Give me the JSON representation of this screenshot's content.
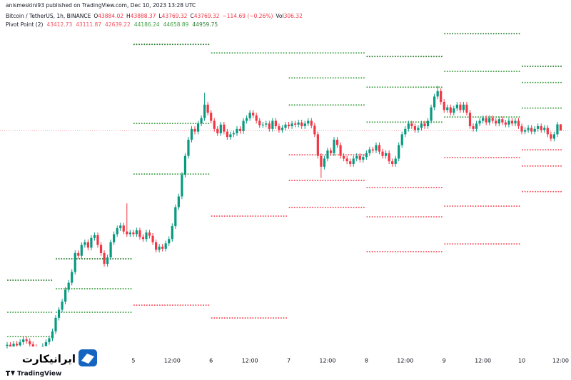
{
  "header": {
    "published": "anismeskini93 published on TradingView.com, Dec 10, 2023 13:28 UTC",
    "symbol": "Bitcoin / TetherUS, 1h, BINANCE",
    "ohlc_labels": [
      "O",
      "H",
      "L",
      "C"
    ],
    "change": "−114.69 (−0.26%)",
    "volume_label": "Vol",
    "volume": 306.32,
    "indicator": "Pivot Point (2)"
  },
  "chart_data": {
    "type": "candlestick",
    "categories": [
      null,
      null,
      null,
      null,
      null,
      null,
      null,
      null,
      null,
      null,
      null,
      null,
      null,
      null,
      null,
      null,
      null,
      null,
      null,
      null,
      null,
      null,
      null,
      null,
      null,
      null,
      null,
      null,
      null,
      null,
      null,
      null,
      null,
      null,
      null,
      null,
      null,
      null,
      null,
      "5",
      null,
      null,
      null,
      null,
      null,
      null,
      null,
      null,
      null,
      null,
      null,
      "12:00",
      null,
      null,
      null,
      null,
      null,
      null,
      null,
      null,
      null,
      null,
      null,
      "6",
      null,
      null,
      null,
      null,
      null,
      null,
      null,
      null,
      null,
      null,
      null,
      "12:00",
      null,
      null,
      null,
      null,
      null,
      null,
      null,
      null,
      null,
      null,
      null,
      "7",
      null,
      null,
      null,
      null,
      null,
      null,
      null,
      null,
      null,
      null,
      null,
      "12:00",
      null,
      null,
      null,
      null,
      null,
      null,
      null,
      null,
      null,
      null,
      null,
      "8",
      null,
      null,
      null,
      null,
      null,
      null,
      null,
      null,
      null,
      null,
      null,
      "12:00",
      null,
      null,
      null,
      null,
      null,
      null,
      null,
      null,
      null,
      null,
      null,
      "9",
      null,
      null,
      null,
      null,
      null,
      null,
      null,
      null,
      null,
      null,
      null,
      "12:00",
      null,
      null,
      null,
      null,
      null,
      null,
      null,
      null,
      null,
      null,
      null,
      "10",
      null,
      null,
      null,
      null,
      null,
      null,
      null,
      null,
      null,
      null,
      null,
      "12:00"
    ],
    "open": [
      39780,
      39800,
      39760,
      39820,
      39790,
      39850,
      39900,
      39870,
      39810,
      39760,
      39720,
      39700,
      39780,
      39850,
      39920,
      40050,
      40300,
      40450,
      40600,
      40820,
      40950,
      41150,
      41500,
      41450,
      41650,
      41700,
      41600,
      41780,
      41830,
      41650,
      41500,
      41300,
      41420,
      41700,
      41850,
      41960,
      42010,
      41900,
      41850,
      41880,
      41850,
      41920,
      41800,
      41760,
      41880,
      41820,
      41700,
      41560,
      41620,
      41580,
      41680,
      41760,
      42000,
      42350,
      42550,
      42950,
      43300,
      43600,
      43800,
      43750,
      43900,
      44000,
      44250,
      44100,
      43950,
      43800,
      43720,
      43880,
      43750,
      43650,
      43700,
      43720,
      43800,
      43760,
      43950,
      44000,
      44100,
      44050,
      43950,
      43870,
      43880,
      43900,
      43800,
      43950,
      43850,
      43780,
      43820,
      43880,
      43850,
      43900,
      43880,
      43920,
      43850,
      43900,
      43950,
      43860,
      43700,
      43300,
      43100,
      43250,
      43400,
      43350,
      43600,
      43500,
      43300,
      43250,
      43200,
      43150,
      43250,
      43300,
      43230,
      43280,
      43350,
      43420,
      43400,
      43500,
      43380,
      43300,
      43350,
      43200,
      43150,
      43250,
      43500,
      43700,
      43800,
      43900,
      43850,
      43780,
      43820,
      43900,
      43850,
      43950,
      44200,
      44400,
      44500,
      44300,
      44150,
      44200,
      44100,
      44180,
      44250,
      44150,
      44250,
      44100,
      43850,
      43800,
      43900,
      43950,
      44000,
      43920,
      44000,
      43950,
      43900,
      43980,
      43920,
      43880,
      43950,
      43900,
      43950,
      43850,
      43750,
      43780,
      43820,
      43750,
      43800,
      43850,
      43780,
      43820,
      43700,
      43620,
      43700,
      43884.02
    ],
    "high": [
      39850,
      39850,
      39870,
      39870,
      39900,
      39950,
      39950,
      39920,
      39860,
      39810,
      39770,
      39830,
      39900,
      39970,
      40100,
      40350,
      40500,
      40650,
      40870,
      41000,
      41200,
      41550,
      41550,
      41700,
      41750,
      41750,
      41830,
      41880,
      41880,
      41700,
      41550,
      41470,
      41750,
      41900,
      42010,
      42060,
      42060,
      42420,
      41930,
      41930,
      41970,
      41970,
      41850,
      41930,
      41930,
      41870,
      41750,
      41670,
      41670,
      41730,
      41810,
      42050,
      42400,
      42600,
      43000,
      43350,
      43650,
      43850,
      43850,
      43950,
      44050,
      44470,
      44300,
      44150,
      44000,
      43850,
      43930,
      43930,
      43800,
      43750,
      43770,
      43850,
      43850,
      44000,
      44050,
      44150,
      44150,
      44100,
      44000,
      43930,
      43950,
      43950,
      44000,
      44000,
      43900,
      43870,
      43930,
      43930,
      43950,
      43950,
      43970,
      43970,
      43950,
      44000,
      44000,
      43910,
      43750,
      43350,
      43300,
      43450,
      43450,
      43650,
      43650,
      43550,
      43350,
      43300,
      43250,
      43300,
      43350,
      43350,
      43330,
      43400,
      43470,
      43470,
      43550,
      43550,
      43430,
      43400,
      43400,
      43250,
      43300,
      43550,
      43750,
      43850,
      43950,
      43950,
      43900,
      43870,
      43950,
      43950,
      44000,
      44250,
      44450,
      44600,
      44550,
      44350,
      44250,
      44250,
      44230,
      44300,
      44300,
      44300,
      44300,
      44150,
      43900,
      43950,
      44000,
      44050,
      44050,
      44050,
      44050,
      44000,
      44030,
      44030,
      43970,
      44000,
      44000,
      44000,
      44000,
      43900,
      43830,
      43870,
      43870,
      43850,
      43900,
      43900,
      43870,
      43870,
      43750,
      43750,
      43930,
      43888.37
    ],
    "low": [
      39730,
      39710,
      39710,
      39740,
      39740,
      39800,
      39820,
      39760,
      39710,
      39670,
      39620,
      39650,
      39730,
      39800,
      39870,
      40000,
      40250,
      40400,
      40550,
      40770,
      40900,
      41100,
      41400,
      41400,
      41600,
      41550,
      41550,
      41730,
      41600,
      41450,
      41250,
      41250,
      41370,
      41650,
      41800,
      41910,
      41850,
      41800,
      41800,
      41800,
      41800,
      41750,
      41710,
      41710,
      41770,
      41650,
      41510,
      41510,
      41530,
      41530,
      41630,
      41710,
      41950,
      42300,
      42500,
      42900,
      43250,
      43550,
      43700,
      43700,
      43850,
      43950,
      44050,
      43900,
      43750,
      43670,
      43670,
      43700,
      43600,
      43600,
      43650,
      43670,
      43710,
      43710,
      43900,
      43950,
      44000,
      43900,
      43820,
      43820,
      43830,
      43750,
      43750,
      43800,
      43730,
      43730,
      43770,
      43800,
      43800,
      43830,
      43830,
      43800,
      43800,
      43850,
      43810,
      43650,
      43250,
      42890,
      43050,
      43200,
      43300,
      43300,
      43450,
      43250,
      43200,
      43150,
      43100,
      43100,
      43200,
      43180,
      43180,
      43230,
      43300,
      43350,
      43350,
      43330,
      43250,
      43250,
      43150,
      43100,
      43100,
      43200,
      43450,
      43650,
      43750,
      43800,
      43730,
      43730,
      43770,
      43800,
      43800,
      43900,
      44150,
      44350,
      44250,
      44100,
      44100,
      44050,
      44050,
      44130,
      44100,
      44100,
      44050,
      43800,
      43750,
      43750,
      43850,
      43900,
      43870,
      43870,
      43900,
      43850,
      43850,
      43870,
      43830,
      43830,
      43850,
      43850,
      43800,
      43700,
      43700,
      43730,
      43700,
      43700,
      43750,
      43730,
      43730,
      43650,
      43570,
      43570,
      43650,
      43769.32
    ],
    "close": [
      39800,
      39760,
      39820,
      39790,
      39850,
      39900,
      39870,
      39810,
      39760,
      39720,
      39700,
      39780,
      39850,
      39920,
      40050,
      40300,
      40450,
      40600,
      40820,
      40950,
      41150,
      41500,
      41450,
      41650,
      41700,
      41600,
      41780,
      41830,
      41650,
      41500,
      41300,
      41420,
      41700,
      41850,
      41960,
      42010,
      41900,
      41850,
      41880,
      41850,
      41920,
      41800,
      41760,
      41880,
      41820,
      41700,
      41560,
      41620,
      41580,
      41680,
      41760,
      42000,
      42350,
      42550,
      42950,
      43300,
      43600,
      43800,
      43750,
      43900,
      44000,
      44250,
      44100,
      43950,
      43800,
      43720,
      43880,
      43750,
      43650,
      43700,
      43720,
      43800,
      43760,
      43950,
      44000,
      44100,
      44050,
      43950,
      43870,
      43880,
      43900,
      43800,
      43950,
      43850,
      43780,
      43820,
      43880,
      43850,
      43900,
      43880,
      43920,
      43850,
      43900,
      43950,
      43860,
      43700,
      43300,
      43100,
      43250,
      43400,
      43350,
      43600,
      43500,
      43300,
      43250,
      43200,
      43150,
      43250,
      43300,
      43230,
      43280,
      43350,
      43420,
      43400,
      43500,
      43380,
      43300,
      43350,
      43200,
      43150,
      43250,
      43500,
      43700,
      43800,
      43900,
      43850,
      43780,
      43820,
      43900,
      43850,
      43950,
      44200,
      44400,
      44500,
      44300,
      44150,
      44200,
      44100,
      44180,
      44250,
      44150,
      44250,
      44100,
      43850,
      43800,
      43900,
      43950,
      44000,
      43920,
      44000,
      43950,
      43900,
      43980,
      43920,
      43880,
      43950,
      43900,
      43950,
      43850,
      43750,
      43780,
      43820,
      43750,
      43800,
      43850,
      43780,
      43820,
      43700,
      43620,
      43700,
      43884.02,
      43769.32
    ],
    "up_color": "#089981",
    "down_color": "#f23645",
    "ylim": [
      39650,
      45660
    ],
    "last_price_line": true,
    "pivots": [
      {
        "levels": [
          40997,
          40403,
          39954
        ],
        "colors": [
          "#2e7d32",
          "#43a047",
          "#43a047"
        ]
      },
      {
        "levels": [
          41393,
          40839,
          40403
        ],
        "colors": [
          "#2e7d32",
          "#43a047",
          "#43a047"
        ]
      },
      {
        "levels": [
          45366,
          43901,
          42964,
          40535
        ],
        "colors": [
          "#2e7d32",
          "#43a047",
          "#43a047",
          "#f7525f"
        ]
      },
      {
        "levels": [
          45208,
          42185,
          40297
        ],
        "colors": [
          "#43a047",
          "#f7525f",
          "#f7525f"
        ]
      },
      {
        "levels": [
          45208,
          44746,
          44244,
          43320,
          42845,
          42343
        ],
        "colors": [
          "#43a047",
          "#43a047",
          "#43a047",
          "#f7525f",
          "#f7525f",
          "#f7525f"
        ]
      },
      {
        "levels": [
          45142,
          44574,
          43927,
          42713,
          42172,
          41525
        ],
        "colors": [
          "#2e7d32",
          "#43a047",
          "#43a047",
          "#f7525f",
          "#f7525f",
          "#f7525f"
        ]
      },
      {
        "levels": [
          45564,
          44865,
          44020,
          43267,
          42370,
          41670
        ],
        "colors": [
          "#2e7d32",
          "#43a047",
          "#43a047",
          "#f7525f",
          "#f7525f",
          "#f7525f"
        ]
      },
      {
        "levels": [
          43412.73,
          43111.87,
          42639.22,
          44186.24,
          44658.89,
          44959.75
        ],
        "colors": [
          "#f7525f",
          "#f7525f",
          "#f7525f",
          "#43a047",
          "#43a047",
          "#2e7d32"
        ]
      }
    ]
  },
  "watermark": {
    "brand": "ایرانیکارت",
    "platform": "TradingView"
  }
}
